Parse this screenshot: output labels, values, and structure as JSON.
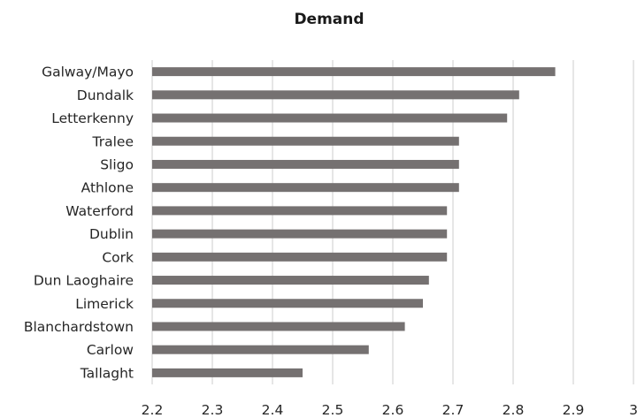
{
  "chart_data": {
    "type": "bar",
    "orientation": "horizontal",
    "title": "Demand",
    "xlabel": "",
    "ylabel": "",
    "categories": [
      "Galway/Mayo",
      "Dundalk",
      "Letterkenny",
      "Tralee",
      "Sligo",
      "Athlone",
      "Waterford",
      "Dublin",
      "Cork",
      "Dun Laoghaire",
      "Limerick",
      "Blanchardstown",
      "Carlow",
      "Tallaght"
    ],
    "values": [
      2.87,
      2.81,
      2.79,
      2.71,
      2.71,
      2.71,
      2.69,
      2.69,
      2.69,
      2.66,
      2.65,
      2.62,
      2.56,
      2.45
    ],
    "xlim": [
      2.2,
      3.0
    ],
    "x_ticks": [
      "2.2",
      "2.3",
      "2.4",
      "2.5",
      "2.6",
      "2.7",
      "2.8",
      "2.9",
      "3"
    ],
    "grid": true,
    "legend": "none",
    "bar_color": "#757171",
    "grid_color": "#d9d9d9"
  }
}
